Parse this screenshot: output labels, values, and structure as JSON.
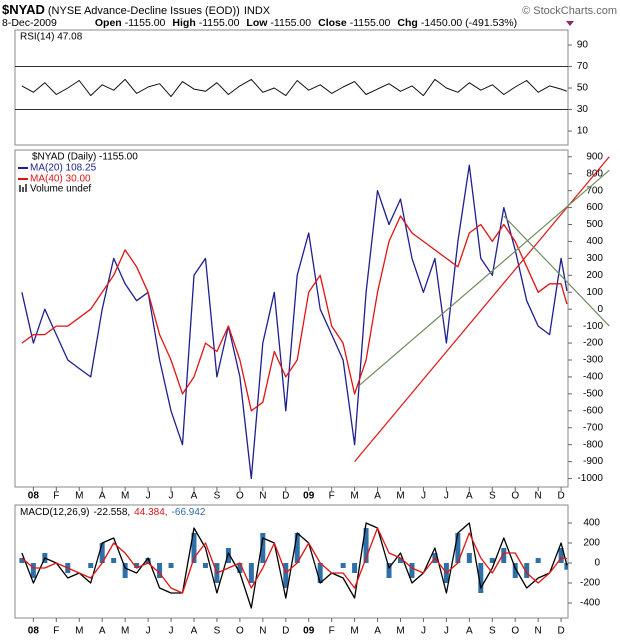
{
  "header": {
    "symbol": "$NYAD",
    "name": "(NYSE Advance-Decline Issues (EOD))",
    "exchange": "INDX",
    "source": "© StockCharts.com",
    "date": "8-Dec-2009",
    "stats": [
      {
        "label": "Open",
        "value": "-1155.00"
      },
      {
        "label": "High",
        "value": "-1155.00"
      },
      {
        "label": "Low",
        "value": "-1155.00"
      },
      {
        "label": "Close",
        "value": "-1155.00"
      },
      {
        "label": "Chg",
        "value": "-1450.00 (-491.53%)"
      }
    ]
  },
  "chart_data": [
    {
      "type": "line",
      "title": "RSI(14) 47.08",
      "x": [
        -0.5,
        0,
        0.5,
        1,
        1.5,
        2,
        2.5,
        3,
        3.5,
        4,
        4.5,
        5,
        5.5,
        6,
        6.5,
        7,
        7.5,
        8,
        8.5,
        9,
        9.5,
        10,
        10.5,
        11,
        11.5,
        12,
        12.5,
        13,
        13.5,
        14,
        14.5,
        15,
        15.5,
        16,
        16.5,
        17,
        17.5,
        18,
        18.5,
        19,
        19.5,
        20,
        20.5,
        21,
        21.5,
        22,
        22.5,
        23,
        23.25
      ],
      "xlim": [
        -0.8,
        23.3
      ],
      "ylim": [
        -3,
        104
      ],
      "yticks": [
        10,
        30,
        50,
        70,
        90
      ],
      "reference_lines": [
        30,
        70
      ],
      "series": [
        {
          "color": "#111111",
          "values": [
            52,
            46,
            55,
            44,
            50,
            57,
            43,
            53,
            48,
            58,
            45,
            51,
            54,
            42,
            56,
            49,
            47,
            55,
            44,
            52,
            58,
            46,
            50,
            43,
            57,
            48,
            53,
            45,
            51,
            56,
            44,
            49,
            54,
            47,
            52,
            43,
            58,
            50,
            46,
            55,
            48,
            53,
            44,
            51,
            57,
            46,
            52,
            49,
            47.08
          ]
        }
      ]
    },
    {
      "type": "line",
      "title": "$NYAD (Daily) -1155.00",
      "volume_label": "Volume undef",
      "x": [
        -0.5,
        0,
        0.5,
        1,
        1.5,
        2,
        2.5,
        3,
        3.5,
        4,
        4.5,
        5,
        5.5,
        6,
        6.5,
        7,
        7.5,
        8,
        8.5,
        9,
        9.5,
        10,
        10.5,
        11,
        11.5,
        12,
        12.5,
        13,
        13.5,
        14,
        14.5,
        15,
        15.5,
        16,
        16.5,
        17,
        17.5,
        18,
        18.5,
        19,
        19.5,
        20,
        20.5,
        21,
        21.5,
        22,
        22.5,
        23,
        23.25
      ],
      "xlim": [
        -0.8,
        23.3
      ],
      "ylim": [
        -1050,
        940
      ],
      "yticks": [
        -1000,
        -900,
        -800,
        -700,
        -600,
        -500,
        -400,
        -300,
        -200,
        -100,
        0,
        100,
        200,
        300,
        400,
        500,
        600,
        700,
        800,
        900
      ],
      "xticks": [
        {
          "value": 0,
          "label": "08"
        },
        {
          "value": 1,
          "label": "F"
        },
        {
          "value": 2,
          "label": "M"
        },
        {
          "value": 3,
          "label": "A"
        },
        {
          "value": 4,
          "label": "M"
        },
        {
          "value": 5,
          "label": "J"
        },
        {
          "value": 6,
          "label": "J"
        },
        {
          "value": 7,
          "label": "A"
        },
        {
          "value": 8,
          "label": "S"
        },
        {
          "value": 9,
          "label": "O"
        },
        {
          "value": 10,
          "label": "N"
        },
        {
          "value": 11,
          "label": "D"
        },
        {
          "value": 12,
          "label": "09"
        },
        {
          "value": 13,
          "label": "F"
        },
        {
          "value": 14,
          "label": "M"
        },
        {
          "value": 15,
          "label": "A"
        },
        {
          "value": 16,
          "label": "M"
        },
        {
          "value": 17,
          "label": "J"
        },
        {
          "value": 18,
          "label": "J"
        },
        {
          "value": 19,
          "label": "A"
        },
        {
          "value": 20,
          "label": "S"
        },
        {
          "value": 21,
          "label": "O"
        },
        {
          "value": 22,
          "label": "N"
        },
        {
          "value": 23,
          "label": "D"
        }
      ],
      "series": [
        {
          "name": "MA(20) 108.25",
          "color": "#1f1f8f",
          "values": [
            100,
            -200,
            0,
            -150,
            -300,
            -350,
            -400,
            0,
            300,
            150,
            50,
            100,
            -300,
            -600,
            -800,
            200,
            300,
            -400,
            -100,
            -400,
            -1000,
            -200,
            100,
            -600,
            200,
            450,
            0,
            -150,
            -300,
            -800,
            100,
            700,
            500,
            650,
            300,
            100,
            300,
            -200,
            400,
            850,
            300,
            200,
            600,
            350,
            50,
            -100,
            -150,
            300,
            108.25
          ]
        },
        {
          "name": "MA(40) 30.00",
          "color": "#e01414",
          "values": [
            -200,
            -150,
            -150,
            -100,
            -100,
            -50,
            0,
            100,
            200,
            350,
            250,
            100,
            -150,
            -300,
            -500,
            -400,
            -200,
            -250,
            -100,
            -300,
            -600,
            -550,
            -250,
            -400,
            -300,
            100,
            200,
            -100,
            -200,
            -500,
            -300,
            100,
            400,
            550,
            450,
            400,
            350,
            300,
            250,
            450,
            500,
            400,
            500,
            400,
            250,
            100,
            150,
            150,
            30
          ]
        }
      ],
      "trendlines": [
        {
          "color": "#e01414",
          "x": [
            14,
            25.1
          ],
          "values": [
            -900,
            900
          ]
        },
        {
          "color": "#6f8f5f",
          "x": [
            14.2,
            25.1
          ],
          "values": [
            -450,
            820
          ]
        },
        {
          "color": "#6f8f5f",
          "x": [
            20.5,
            25.1
          ],
          "values": [
            550,
            -100
          ]
        }
      ]
    },
    {
      "type": "line",
      "title": "MACD(12,26,9)",
      "x": [
        -0.5,
        0,
        0.5,
        1,
        1.5,
        2,
        2.5,
        3,
        3.5,
        4,
        4.5,
        5,
        5.5,
        6,
        6.5,
        7,
        7.5,
        8,
        8.5,
        9,
        9.5,
        10,
        10.5,
        11,
        11.5,
        12,
        12.5,
        13,
        13.5,
        14,
        14.5,
        15,
        15.5,
        16,
        16.5,
        17,
        17.5,
        18,
        18.5,
        19,
        19.5,
        20,
        20.5,
        21,
        21.5,
        22,
        22.5,
        23,
        23.25
      ],
      "xlim": [
        -0.8,
        23.3
      ],
      "ylim": [
        -550,
        580
      ],
      "yticks": [
        -400,
        -200,
        0,
        200,
        400
      ],
      "xticks": [
        {
          "value": 0,
          "label": "08"
        },
        {
          "value": 1,
          "label": "F"
        },
        {
          "value": 2,
          "label": "M"
        },
        {
          "value": 3,
          "label": "A"
        },
        {
          "value": 4,
          "label": "M"
        },
        {
          "value": 5,
          "label": "J"
        },
        {
          "value": 6,
          "label": "J"
        },
        {
          "value": 7,
          "label": "A"
        },
        {
          "value": 8,
          "label": "S"
        },
        {
          "value": 9,
          "label": "O"
        },
        {
          "value": 10,
          "label": "N"
        },
        {
          "value": 11,
          "label": "D"
        },
        {
          "value": 12,
          "label": "09"
        },
        {
          "value": 13,
          "label": "F"
        },
        {
          "value": 14,
          "label": "M"
        },
        {
          "value": 15,
          "label": "A"
        },
        {
          "value": 16,
          "label": "M"
        },
        {
          "value": 17,
          "label": "J"
        },
        {
          "value": 18,
          "label": "J"
        },
        {
          "value": 19,
          "label": "A"
        },
        {
          "value": 20,
          "label": "S"
        },
        {
          "value": 21,
          "label": "O"
        },
        {
          "value": 22,
          "label": "N"
        },
        {
          "value": 23,
          "label": "D"
        }
      ],
      "series": [
        {
          "name": "-66.942",
          "color": "#2f6fa8",
          "type": "bar",
          "values": [
            50,
            -150,
            100,
            0,
            -100,
            0,
            -50,
            200,
            50,
            -150,
            -50,
            50,
            -150,
            -50,
            0,
            300,
            -50,
            -200,
            150,
            -100,
            -200,
            300,
            0,
            -250,
            300,
            0,
            -200,
            0,
            -50,
            -100,
            350,
            0,
            -150,
            50,
            -150,
            0,
            100,
            -200,
            300,
            100,
            -300,
            50,
            150,
            -150,
            -150,
            50,
            0,
            150,
            -66.942
          ]
        },
        {
          "name": "-22.558,",
          "color": "#000000",
          "values": [
            100,
            -200,
            50,
            0,
            -150,
            -100,
            -200,
            200,
            250,
            -50,
            -100,
            50,
            -250,
            -300,
            -300,
            350,
            150,
            -300,
            100,
            -100,
            -450,
            250,
            200,
            -350,
            300,
            200,
            -200,
            -100,
            -150,
            -350,
            400,
            350,
            -50,
            100,
            -200,
            -100,
            150,
            -300,
            300,
            400,
            -250,
            -50,
            250,
            -50,
            -250,
            -150,
            -100,
            200,
            -22.558
          ]
        },
        {
          "name": "44.384,",
          "color": "#e01414",
          "values": [
            50,
            -50,
            -50,
            0,
            -50,
            -100,
            -150,
            0,
            200,
            100,
            -50,
            0,
            -100,
            -250,
            -300,
            50,
            200,
            -100,
            -50,
            0,
            -250,
            -50,
            200,
            -100,
            0,
            200,
            0,
            -100,
            -100,
            -250,
            50,
            350,
            100,
            50,
            -50,
            -100,
            50,
            -100,
            0,
            300,
            50,
            -100,
            100,
            100,
            -100,
            -200,
            -100,
            50,
            44.384
          ]
        }
      ]
    }
  ]
}
